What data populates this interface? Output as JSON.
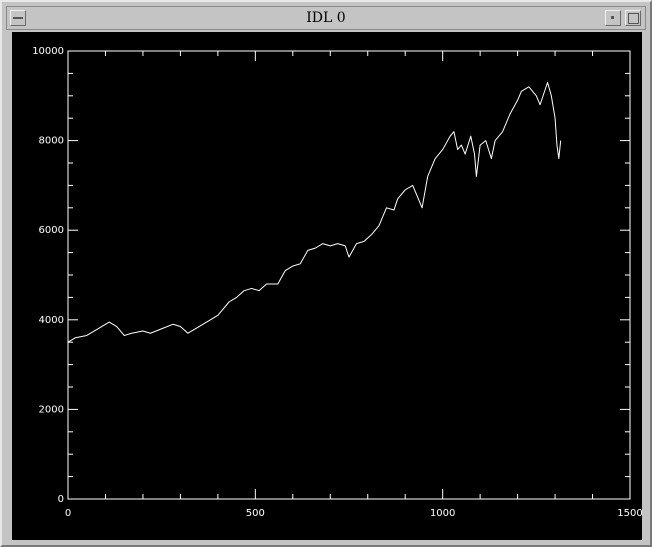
{
  "window": {
    "title": "IDL 0"
  },
  "chart_data": {
    "type": "line",
    "x": [
      0,
      20,
      50,
      80,
      100,
      110,
      130,
      150,
      170,
      200,
      220,
      250,
      280,
      300,
      320,
      350,
      380,
      400,
      430,
      450,
      470,
      490,
      510,
      530,
      560,
      580,
      600,
      620,
      640,
      660,
      680,
      700,
      720,
      740,
      750,
      770,
      790,
      810,
      830,
      850,
      870,
      880,
      900,
      920,
      930,
      945,
      960,
      980,
      1000,
      1020,
      1030,
      1040,
      1050,
      1060,
      1075,
      1085,
      1090,
      1100,
      1115,
      1130,
      1140,
      1160,
      1180,
      1200,
      1210,
      1230,
      1250,
      1260,
      1280,
      1290,
      1300,
      1305,
      1310,
      1315
    ],
    "series": [
      {
        "color": "#ffffff",
        "values": [
          3500,
          3600,
          3650,
          3800,
          3900,
          3950,
          3850,
          3650,
          3700,
          3750,
          3700,
          3800,
          3900,
          3850,
          3700,
          3850,
          4000,
          4100,
          4400,
          4500,
          4650,
          4700,
          4650,
          4800,
          4800,
          5100,
          5200,
          5250,
          5550,
          5600,
          5700,
          5650,
          5700,
          5650,
          5400,
          5700,
          5750,
          5900,
          6100,
          6500,
          6450,
          6700,
          6900,
          7000,
          6800,
          6500,
          7200,
          7600,
          7800,
          8100,
          8200,
          7800,
          7900,
          7700,
          8100,
          7700,
          7200,
          7900,
          8000,
          7600,
          8000,
          8200,
          8600,
          8900,
          9100,
          9200,
          9000,
          8800,
          9300,
          9000,
          8500,
          7900,
          7600,
          8000
        ]
      }
    ],
    "xlim": [
      0,
      1500
    ],
    "xticks": [
      0,
      500,
      1000,
      1500
    ],
    "xminorticks": [
      100,
      200,
      300,
      400,
      600,
      700,
      800,
      900,
      1100,
      1200,
      1300,
      1400
    ],
    "ylim": [
      0,
      10000
    ],
    "yticks": [
      0,
      2000,
      4000,
      6000,
      8000,
      10000
    ],
    "yminorticks": [
      500,
      1000,
      1500,
      2500,
      3000,
      3500,
      4500,
      5000,
      5500,
      6500,
      7000,
      7500,
      8500,
      9000,
      9500
    ],
    "background": "#000000"
  }
}
